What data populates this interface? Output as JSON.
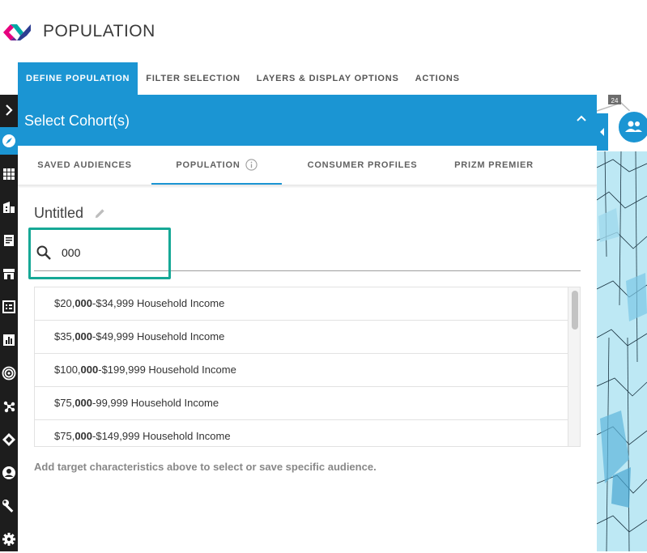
{
  "app": {
    "title": "POPULATION",
    "brand_colors": [
      "#e6007e",
      "#00a9a5",
      "#2d3e92"
    ]
  },
  "main_nav": {
    "tabs": [
      {
        "label": "DEFINE POPULATION",
        "active": true
      },
      {
        "label": "FILTER SELECTION",
        "active": false
      },
      {
        "label": "LAYERS & DISPLAY OPTIONS",
        "active": false
      },
      {
        "label": "ACTIONS",
        "active": false
      }
    ]
  },
  "rail": {
    "icons": [
      "chevron-right-icon",
      "compass-icon",
      "grid-icon",
      "building-icon",
      "report-icon",
      "store-icon",
      "checklist-icon",
      "bar-chart-icon",
      "target-icon",
      "network-icon",
      "diamond-arrows-icon",
      "user-circle-icon",
      "wrench-icon",
      "gear-icon"
    ],
    "active_index": 1
  },
  "panel": {
    "title": "Select Cohort(s)",
    "sub_tabs": [
      {
        "label": "SAVED AUDIENCES",
        "active": false
      },
      {
        "label": "POPULATION",
        "active": true
      },
      {
        "label": "CONSUMER PROFILES",
        "active": false
      },
      {
        "label": "PRIZM PREMIER",
        "active": false
      }
    ],
    "cohort_name": "Untitled",
    "search": {
      "value": "000",
      "placeholder": ""
    },
    "results": [
      {
        "pre": "$20,",
        "match": "000",
        "post": "-$34,999 Household Income"
      },
      {
        "pre": "$35,",
        "match": "000",
        "post": "-$49,999 Household Income"
      },
      {
        "pre": "$100,",
        "match": "000",
        "post": "-$199,999 Household Income"
      },
      {
        "pre": "$75,",
        "match": "000",
        "post": "-99,999 Household Income"
      },
      {
        "pre": "$75,",
        "match": "000",
        "post": "-$149,999 Household Income"
      }
    ],
    "hint": "Add target characteristics above to select or save specific audience."
  },
  "map": {
    "road_label": "24",
    "accent": "#1b95d3"
  }
}
